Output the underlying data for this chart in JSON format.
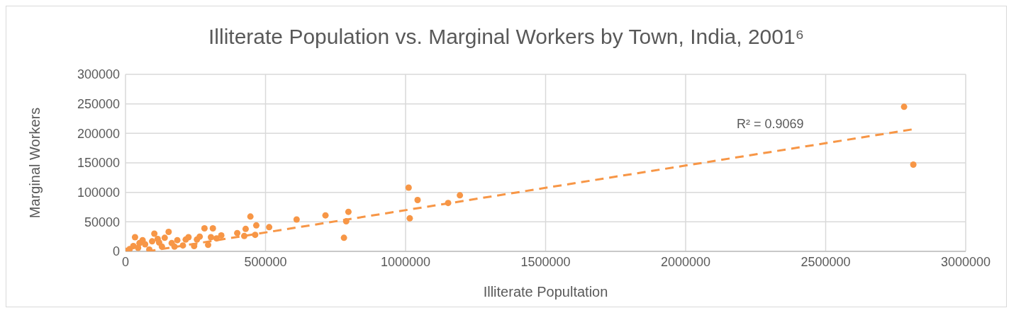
{
  "chart_data": {
    "type": "scatter",
    "title": "Illiterate Population vs. Marginal Workers by Town, India, 2001⁶",
    "xlabel": "Illiterate Popultation",
    "ylabel": "Marginal Workers",
    "xlim": [
      0,
      3000000
    ],
    "xticks": [
      0,
      500000,
      1000000,
      1500000,
      2000000,
      2500000,
      3000000
    ],
    "ylim": [
      0,
      300000
    ],
    "yticks": [
      0,
      50000,
      100000,
      150000,
      200000,
      250000,
      300000
    ],
    "grid": true,
    "legend": false,
    "annotations": [
      "R² = 0.9069"
    ],
    "series": [
      {
        "color": "#f79646",
        "marker": "circle",
        "x": [
          3000,
          15000,
          28000,
          34000,
          45000,
          50000,
          61000,
          70000,
          85000,
          95000,
          103000,
          115000,
          120000,
          130000,
          140000,
          154000,
          165000,
          175000,
          185000,
          205000,
          215000,
          225000,
          245000,
          255000,
          265000,
          282000,
          295000,
          305000,
          312000,
          325000,
          342000,
          399000,
          424000,
          429000,
          446000,
          463000,
          467000,
          513000,
          611000,
          714000,
          780000,
          788000,
          796000,
          1011000,
          1015000,
          1043000,
          1152000,
          1194000,
          2780000,
          2813000
        ],
        "values": [
          1000,
          4000,
          9000,
          24000,
          6000,
          14000,
          19000,
          12000,
          3000,
          17000,
          30000,
          21000,
          15000,
          8000,
          23000,
          33000,
          14000,
          8000,
          19000,
          10000,
          20000,
          24000,
          9000,
          20000,
          25000,
          39000,
          11000,
          24000,
          39000,
          22000,
          27000,
          31000,
          26000,
          38000,
          59000,
          28000,
          44000,
          41000,
          54000,
          61000,
          23000,
          51000,
          67000,
          108000,
          56000,
          87000,
          82000,
          95000,
          245000,
          147000
        ]
      },
      {
        "type": "line",
        "color": "#f79646",
        "line_style": "dashed",
        "x": [
          77000,
          2813000
        ],
        "values": [
          0,
          207000
        ]
      }
    ]
  }
}
